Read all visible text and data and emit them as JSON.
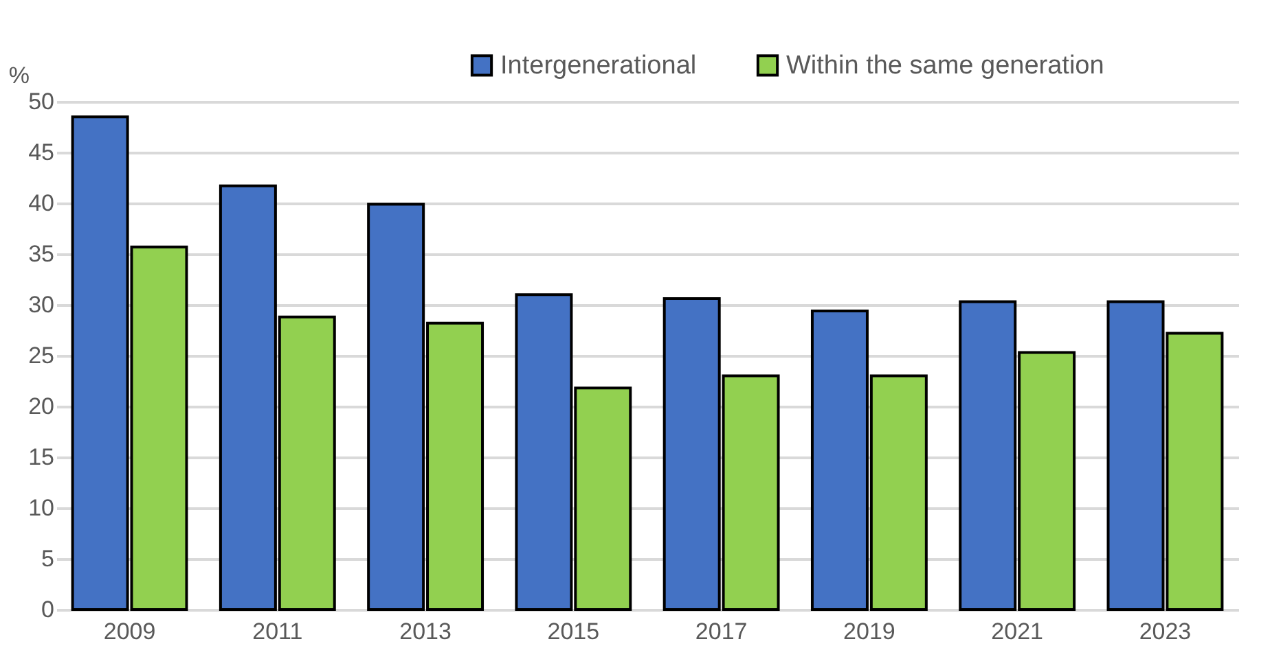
{
  "chart_data": {
    "type": "bar",
    "ylabel": "%",
    "categories": [
      "2009",
      "2011",
      "2013",
      "2015",
      "2017",
      "2019",
      "2021",
      "2023"
    ],
    "series": [
      {
        "name": "Intergenerational",
        "color": "#4472c4",
        "values": [
          48.5,
          41.7,
          39.9,
          31.0,
          30.6,
          29.4,
          30.3,
          30.3
        ]
      },
      {
        "name": "Within the same generation",
        "color": "#92d050",
        "values": [
          35.7,
          28.8,
          28.2,
          21.8,
          23.0,
          23.0,
          25.3,
          27.2
        ]
      }
    ],
    "ylim": [
      0,
      50
    ],
    "yticks": [
      0,
      5,
      10,
      15,
      20,
      25,
      30,
      35,
      40,
      45,
      50
    ],
    "grid": "y",
    "legend": "top right"
  }
}
